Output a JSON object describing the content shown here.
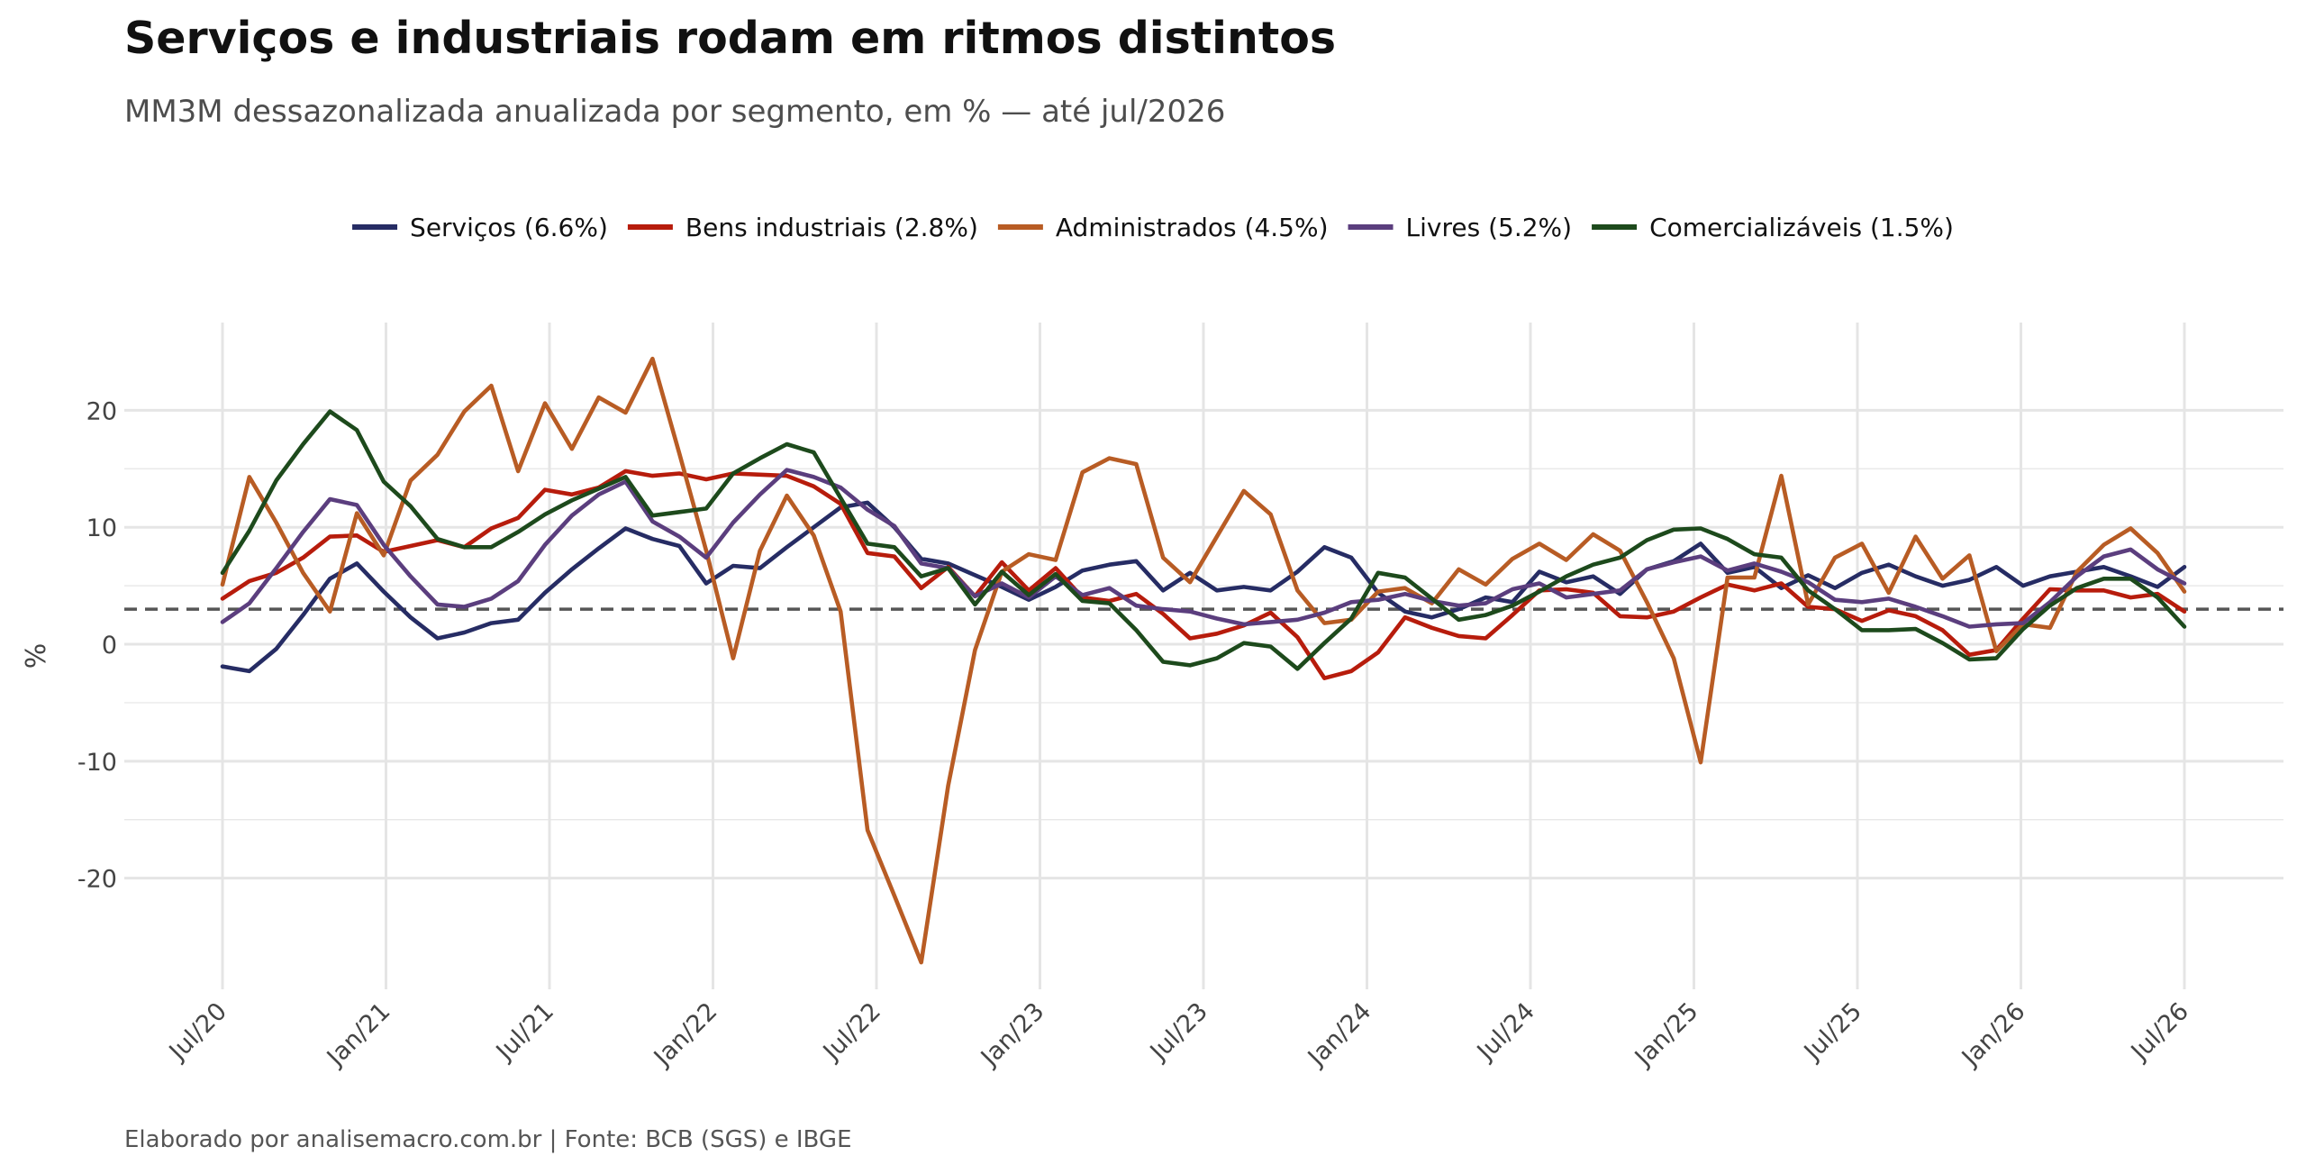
{
  "title": "Serviços e industriais rodam em ritmos distintos",
  "subtitle": "MM3M dessazonalizada anualizada por segmento, em % — até jul/2026",
  "caption": "Elaborado por analisemacro.com.br | Fonte: BCB (SGS) e IBGE",
  "colors": {
    "servicos": "#262c64",
    "bens": "#b71c0c",
    "administrados": "#b85c24",
    "livres": "#5b3e7e",
    "comercializaveis": "#1d4a1c",
    "reference": "#555555",
    "grid": "#e5e5e5"
  },
  "chart_data": {
    "type": "line",
    "title": "Serviços e industriais rodam em ritmos distintos",
    "subtitle": "MM3M dessazonalizada anualizada por segmento, em % — até jul/2026",
    "xlabel": "",
    "ylabel": "%",
    "ylim": [
      -29.5,
      27.5
    ],
    "yticks": [
      -20,
      -10,
      0,
      10,
      20
    ],
    "ytick_labels": [
      "-20",
      "-10",
      "0",
      "10",
      "20"
    ],
    "xticks": [
      "Jul/20",
      "Jan/21",
      "Jul/21",
      "Jan/22",
      "Jul/22",
      "Jan/23",
      "Jul/23",
      "Jan/24",
      "Jul/24",
      "Jan/25",
      "Jul/25",
      "Jan/26",
      "Jul/26"
    ],
    "x_start": "2020-07",
    "x_end": "2026-07",
    "reference_line": 3,
    "grid": true,
    "legend_position": "top",
    "series": [
      {
        "name": "Serviços (6.6%)",
        "color": "#262c64",
        "values": [
          -1.9,
          -2.3,
          -0.4,
          2.5,
          5.6,
          6.9,
          4.5,
          2.3,
          0.5,
          1.0,
          1.8,
          2.1,
          4.4,
          6.4,
          8.2,
          9.9,
          9.0,
          8.4,
          5.2,
          6.7,
          6.5,
          8.3,
          10.0,
          11.7,
          12.1,
          10.0,
          7.3,
          6.9,
          5.9,
          4.9,
          3.8,
          4.9,
          6.3,
          6.8,
          7.1,
          4.6,
          6.1,
          4.6,
          4.9,
          4.6,
          6.2,
          8.3,
          7.4,
          4.4,
          2.8,
          2.3,
          3.0,
          4.0,
          3.6,
          6.2,
          5.3,
          5.8,
          4.3,
          6.4,
          7.1,
          8.6,
          6.1,
          6.6,
          4.8,
          5.9,
          4.8,
          6.1,
          6.8,
          5.8,
          5.0,
          5.5,
          6.6,
          5.0,
          5.8,
          6.2,
          6.6,
          5.8,
          4.9,
          6.6
        ]
      },
      {
        "name": "Bens industriais (2.8%)",
        "color": "#b71c0c",
        "values": [
          3.9,
          5.4,
          6.1,
          7.4,
          9.2,
          9.3,
          7.9,
          8.4,
          8.9,
          8.3,
          9.9,
          10.8,
          13.2,
          12.8,
          13.4,
          14.8,
          14.4,
          14.6,
          14.1,
          14.6,
          14.5,
          14.4,
          13.5,
          12.0,
          7.8,
          7.5,
          4.8,
          6.6,
          4.1,
          7.0,
          4.6,
          6.5,
          4.0,
          3.7,
          4.3,
          2.6,
          0.5,
          0.9,
          1.6,
          2.7,
          0.6,
          -2.9,
          -2.3,
          -0.7,
          2.3,
          1.4,
          0.7,
          0.5,
          2.5,
          4.6,
          4.7,
          4.4,
          2.4,
          2.3,
          2.8,
          4.0,
          5.1,
          4.6,
          5.2,
          3.2,
          3.0,
          2.0,
          2.9,
          2.4,
          1.2,
          -0.9,
          -0.5,
          2.2,
          4.7,
          4.6,
          4.6,
          4.0,
          4.3,
          2.8
        ]
      },
      {
        "name": "Administrados (4.5%)",
        "color": "#b85c24",
        "values": [
          5.1,
          14.3,
          10.4,
          6.1,
          2.8,
          11.2,
          7.6,
          14.0,
          16.2,
          19.9,
          22.1,
          14.8,
          20.6,
          16.7,
          21.1,
          19.8,
          24.4,
          16.3,
          8.0,
          -1.2,
          8.0,
          12.7,
          9.3,
          2.8,
          -15.9,
          -21.5,
          -27.2,
          -12.1,
          -0.5,
          6.2,
          7.7,
          7.2,
          14.7,
          15.9,
          15.4,
          7.4,
          5.3,
          9.2,
          13.1,
          11.1,
          4.6,
          1.8,
          2.1,
          4.5,
          4.8,
          3.5,
          6.4,
          5.1,
          7.3,
          8.6,
          7.2,
          9.4,
          8.0,
          3.6,
          -1.2,
          -10.1,
          5.7,
          5.7,
          14.4,
          3.4,
          7.4,
          8.6,
          4.4,
          9.2,
          5.6,
          7.6,
          -0.6,
          1.7,
          1.4,
          6.2,
          8.5,
          9.9,
          7.8,
          4.5
        ]
      },
      {
        "name": "Livres (5.2%)",
        "color": "#5b3e7e",
        "values": [
          1.9,
          3.5,
          6.5,
          9.6,
          12.4,
          11.9,
          8.5,
          5.8,
          3.4,
          3.2,
          3.9,
          5.4,
          8.5,
          11.0,
          12.8,
          13.9,
          10.5,
          9.2,
          7.4,
          10.4,
          12.8,
          14.9,
          14.3,
          13.4,
          11.5,
          10.1,
          6.9,
          6.5,
          4.1,
          5.2,
          4.0,
          5.8,
          4.2,
          4.8,
          3.3,
          3.0,
          2.8,
          2.2,
          1.7,
          1.9,
          2.1,
          2.7,
          3.6,
          3.8,
          4.3,
          3.7,
          3.3,
          3.5,
          4.7,
          5.2,
          4.0,
          4.3,
          4.6,
          6.4,
          7.0,
          7.5,
          6.3,
          6.9,
          6.2,
          5.3,
          3.8,
          3.6,
          3.9,
          3.2,
          2.4,
          1.5,
          1.7,
          1.8,
          3.6,
          5.8,
          7.5,
          8.1,
          6.4,
          5.2
        ]
      },
      {
        "name": "Comercializáveis (1.5%)",
        "color": "#1d4a1c",
        "values": [
          6.1,
          9.7,
          14.0,
          17.1,
          19.9,
          18.3,
          13.9,
          11.8,
          9.0,
          8.3,
          8.3,
          9.6,
          11.1,
          12.3,
          13.3,
          14.3,
          11.0,
          11.3,
          11.6,
          14.6,
          15.9,
          17.1,
          16.4,
          12.5,
          8.6,
          8.3,
          5.8,
          6.5,
          3.4,
          6.2,
          4.2,
          6.0,
          3.7,
          3.5,
          1.2,
          -1.5,
          -1.8,
          -1.2,
          0.1,
          -0.2,
          -2.1,
          0.1,
          2.2,
          6.1,
          5.7,
          3.9,
          2.1,
          2.5,
          3.3,
          4.5,
          5.8,
          6.8,
          7.4,
          8.9,
          9.8,
          9.9,
          9.0,
          7.7,
          7.4,
          4.6,
          3.0,
          1.2,
          1.2,
          1.3,
          0.1,
          -1.3,
          -1.2,
          1.3,
          3.3,
          4.8,
          5.6,
          5.6,
          4.0,
          1.5
        ]
      }
    ]
  }
}
